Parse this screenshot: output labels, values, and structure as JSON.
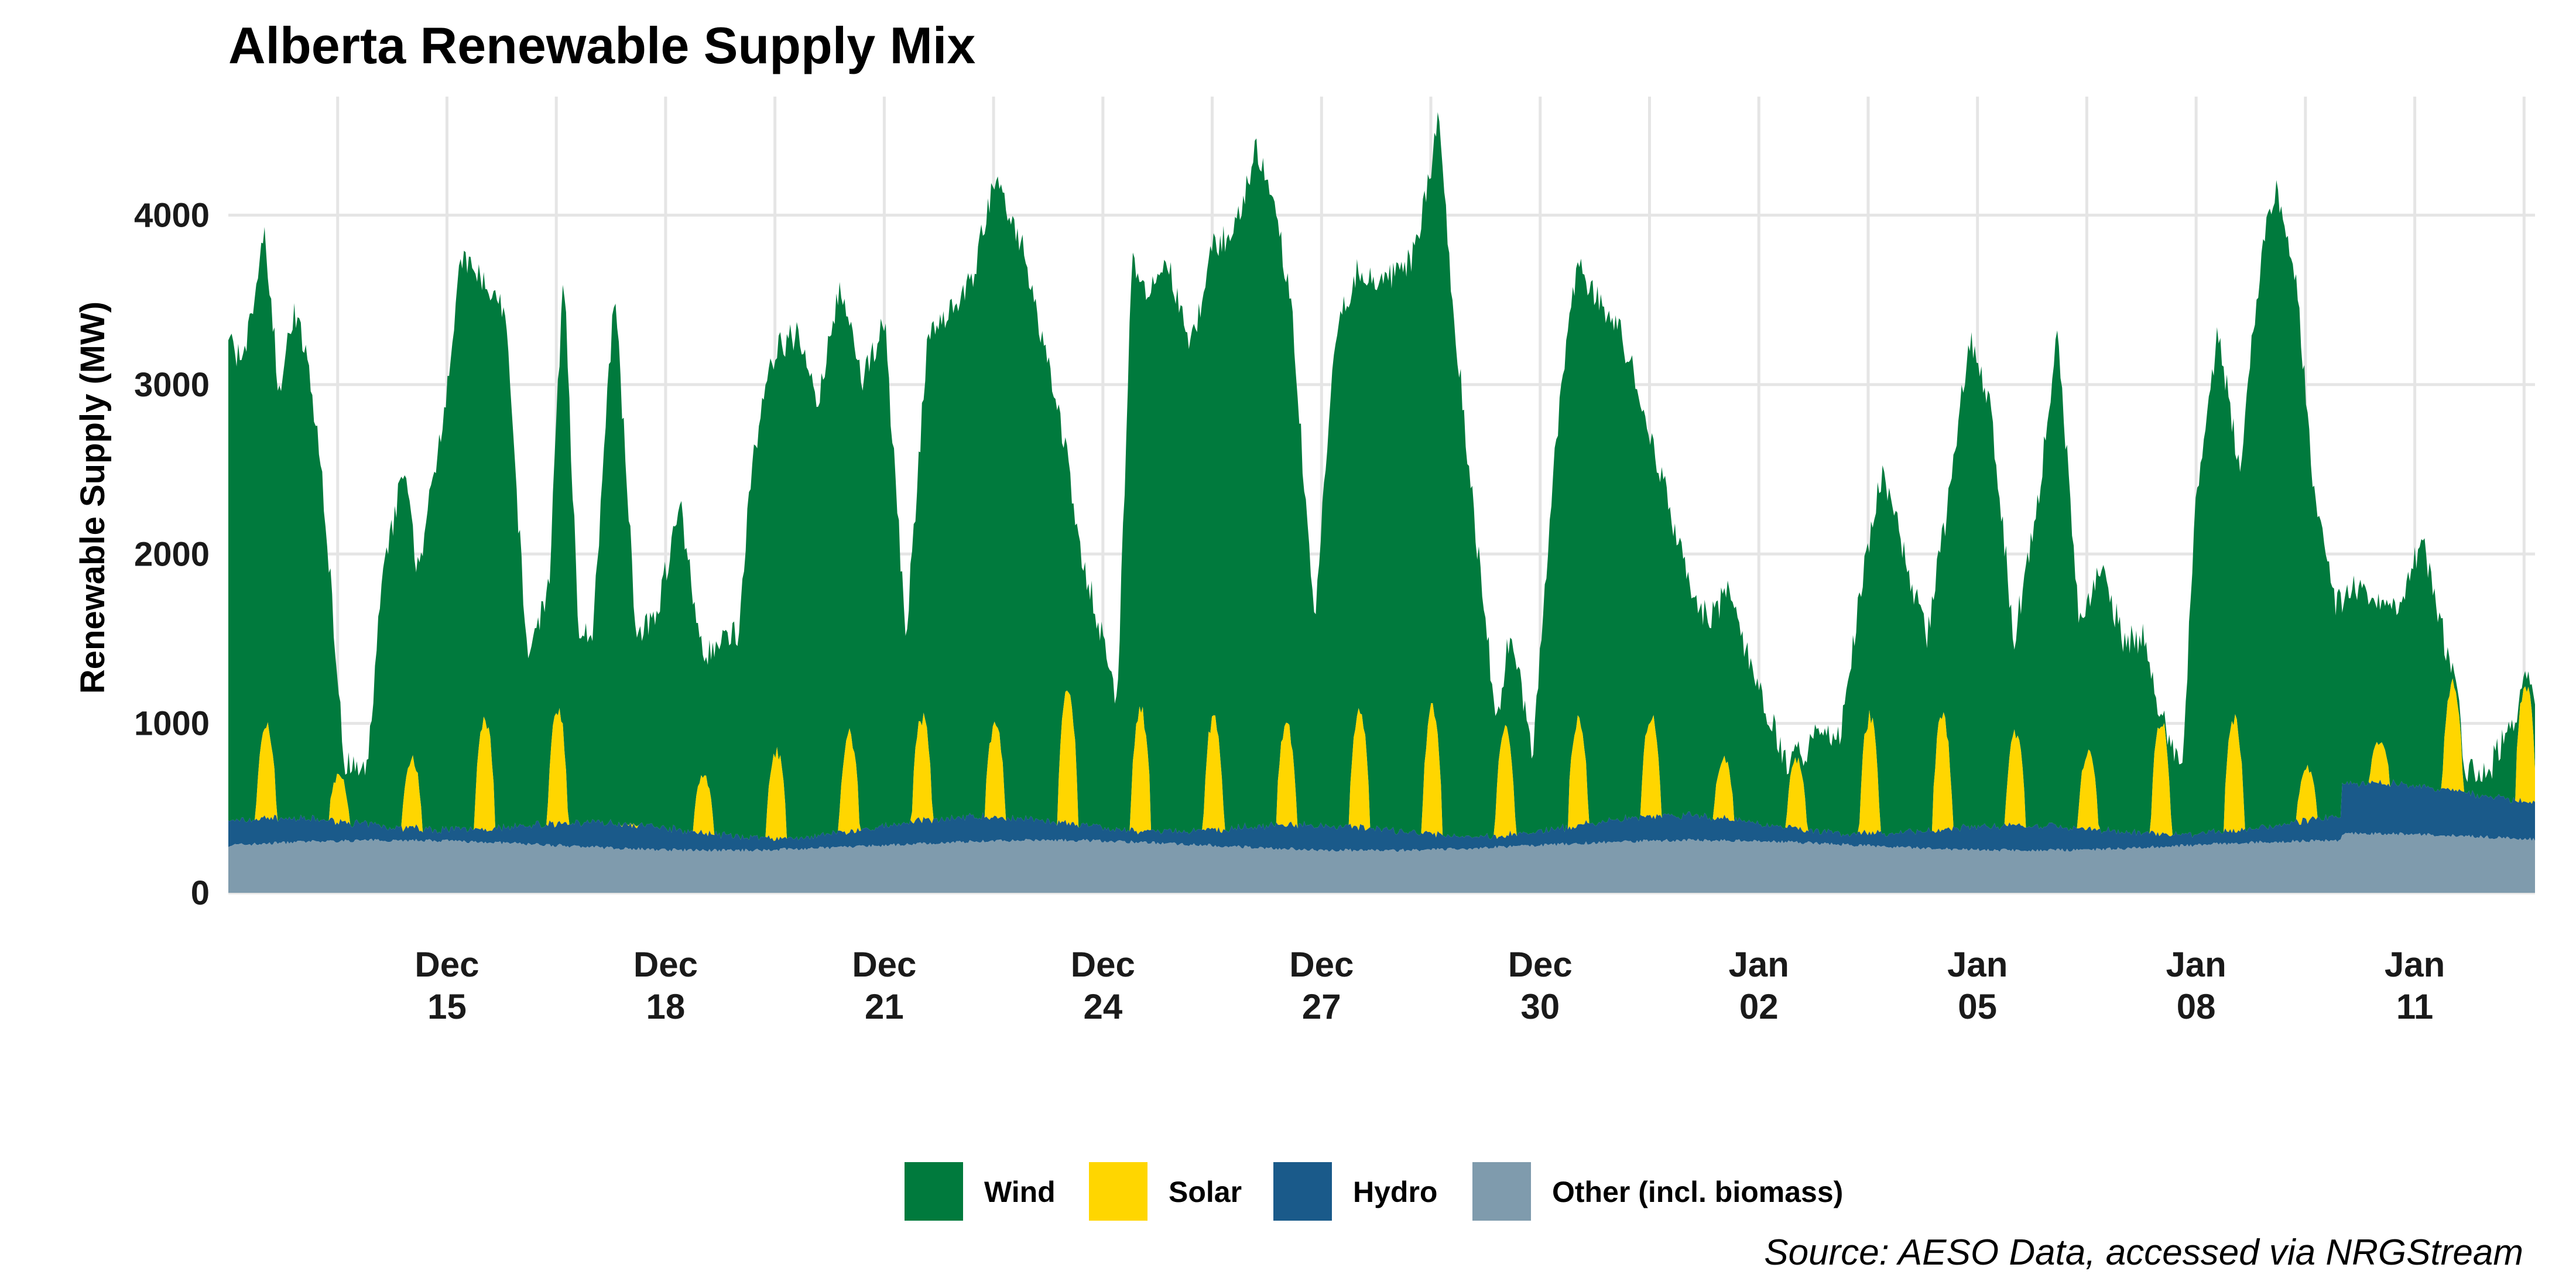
{
  "chart_data": {
    "type": "area",
    "stacked": true,
    "title": "Alberta Renewable Supply Mix",
    "ylabel": "Renewable Supply (MW)",
    "xlabel": "",
    "caption": "Source: AESO Data, accessed via NRGStream",
    "x_range": [
      "Dec 12",
      "Jan 12"
    ],
    "ylim": [
      0,
      4700
    ],
    "y_ticks": [
      0,
      1000,
      2000,
      3000,
      4000
    ],
    "x_ticks": [
      {
        "day": 3,
        "line1": "Dec",
        "line2": "15"
      },
      {
        "day": 6,
        "line1": "Dec",
        "line2": "18"
      },
      {
        "day": 9,
        "line1": "Dec",
        "line2": "21"
      },
      {
        "day": 12,
        "line1": "Dec",
        "line2": "24"
      },
      {
        "day": 15,
        "line1": "Dec",
        "line2": "27"
      },
      {
        "day": 18,
        "line1": "Dec",
        "line2": "30"
      },
      {
        "day": 21,
        "line1": "Jan",
        "line2": "02"
      },
      {
        "day": 24,
        "line1": "Jan",
        "line2": "05"
      },
      {
        "day": 27,
        "line1": "Jan",
        "line2": "08"
      },
      {
        "day": 30,
        "line1": "Jan",
        "line2": "11"
      }
    ],
    "grid": true,
    "legend_position": "bottom",
    "series": [
      {
        "name": "Wind",
        "color": "#007A3D"
      },
      {
        "name": "Solar",
        "color": "#FFD600"
      },
      {
        "name": "Hydro",
        "color": "#1A5A8A"
      },
      {
        "name": "Other (incl. biomass)",
        "color": "#7F9BAD"
      }
    ],
    "total_supply_profile": {
      "note_days_from_dec12": true,
      "day": [
        0,
        0.2,
        0.5,
        0.7,
        0.9,
        1.1,
        1.3,
        1.6,
        1.9,
        2.1,
        2.4,
        2.6,
        2.8,
        3.0,
        3.2,
        3.5,
        3.8,
        4.1,
        4.4,
        4.6,
        4.8,
        5.0,
        5.3,
        5.6,
        5.9,
        6.2,
        6.5,
        6.8,
        7.0,
        7.2,
        7.5,
        7.8,
        8.1,
        8.4,
        8.7,
        9.0,
        9.3,
        9.6,
        9.8,
        10.2,
        10.5,
        10.9,
        11.2,
        11.5,
        11.7,
        12.0,
        12.2,
        12.4,
        12.6,
        12.9,
        13.2,
        13.5,
        13.8,
        14.1,
        14.4,
        14.6,
        14.9,
        15.2,
        15.5,
        15.8,
        16.1,
        16.3,
        16.6,
        16.8,
        17.0,
        17.2,
        17.4,
        17.6,
        17.9,
        18.2,
        18.5,
        18.8,
        19.1,
        19.4,
        19.7,
        20.0,
        20.3,
        20.6,
        20.9,
        21.2,
        21.5,
        21.8,
        22.1,
        22.4,
        22.7,
        23.0,
        23.3,
        23.6,
        23.9,
        24.2,
        24.5,
        24.8,
        25.1,
        25.4,
        25.7,
        26.0,
        26.3,
        26.5,
        26.8,
        27.0,
        27.3,
        27.6,
        27.9,
        28.1,
        28.4,
        28.6,
        28.9,
        29.2,
        29.5,
        29.8,
        30.1,
        30.4,
        30.7,
        31.0,
        31.3,
        31.6
      ],
      "total_mw": [
        3300,
        3100,
        3900,
        2950,
        3450,
        3100,
        2400,
        750,
        700,
        1800,
        2500,
        1900,
        2400,
        3000,
        3750,
        3600,
        3400,
        1400,
        1800,
        3700,
        1600,
        1500,
        3600,
        1500,
        1700,
        2300,
        1400,
        1500,
        1550,
        2600,
        3200,
        3300,
        2900,
        3600,
        3000,
        3400,
        1500,
        3300,
        3400,
        3600,
        4200,
        3800,
        3200,
        2600,
        2000,
        1500,
        1100,
        3800,
        3500,
        3700,
        3200,
        3800,
        3900,
        4400,
        3950,
        3400,
        1600,
        3300,
        3700,
        3600,
        3650,
        3800,
        4550,
        3500,
        2600,
        1800,
        1000,
        1600,
        800,
        2600,
        3700,
        3500,
        3300,
        2900,
        2400,
        1900,
        1600,
        1800,
        1300,
        1000,
        600,
        1000,
        900,
        1800,
        2500,
        2000,
        1500,
        2300,
        3300,
        2800,
        1500,
        2200,
        3300,
        1600,
        1900,
        1500,
        1500,
        1000,
        700,
        2300,
        3300,
        2500,
        3800,
        4200,
        3500,
        2400,
        1700,
        1800,
        1700,
        1700,
        2100,
        1500,
        700,
        700,
        1000,
        1200
      ]
    },
    "solar_daily_peak_mw": [
      1000,
      700,
      800,
      1050,
      1100,
      400,
      700,
      850,
      950,
      1050,
      1000,
      1200,
      1100,
      1050,
      1000,
      1100,
      1100,
      1000,
      1050,
      1050,
      800,
      800,
      1050,
      1050,
      950,
      850,
      1050,
      1050,
      750,
      900,
      1250
    ],
    "hydro_typical_mw": [
      150,
      200
    ],
    "other_typical_mw": [
      250,
      320
    ]
  }
}
